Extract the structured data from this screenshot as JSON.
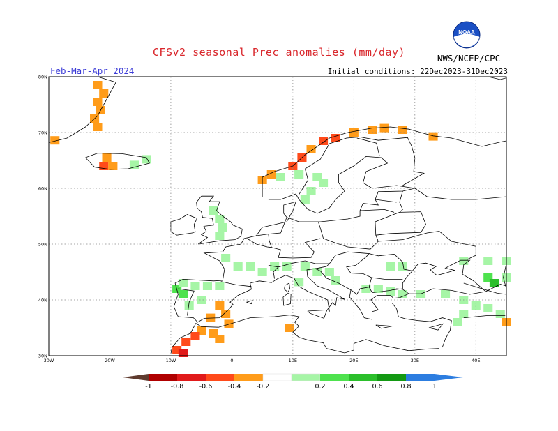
{
  "title": "CFSv2 seasonal Prec anomalies (mm/day)",
  "period": "Feb-Mar-Apr 2024",
  "initial_conditions": "Initial conditions: 22Dec2023-31Dec2023",
  "agency": "NWS/NCEP/CPC",
  "logo_text": "NOAA",
  "map": {
    "projection": "equirectangular",
    "lon_range": [
      -30,
      45
    ],
    "lat_range": [
      30,
      80
    ],
    "grid": true,
    "lat_ticks": [
      "30N",
      "40N",
      "50N",
      "60N",
      "70N",
      "80N"
    ],
    "lon_ticks": [
      "30W",
      "20W",
      "10W",
      "0",
      "10E",
      "20E",
      "30E",
      "40E"
    ]
  },
  "legend": {
    "labels": [
      "-1",
      "-0.8",
      "-0.6",
      "-0.4",
      "-0.2",
      "0.2",
      "0.4",
      "0.6",
      "0.8",
      "1"
    ],
    "colors": [
      "#5e3a2e",
      "#b00000",
      "#e11a1a",
      "#ff4a1a",
      "#ff9c1a",
      "#ffffff",
      "#a6f5a6",
      "#4ee24e",
      "#2bbf2b",
      "#139913",
      "#2c7de0"
    ]
  },
  "chart_data": {
    "type": "heatmap",
    "title": "CFSv2 seasonal Prec anomalies (mm/day)",
    "cells": [
      {
        "lon": -22,
        "lat": 78.5,
        "v": -0.3
      },
      {
        "lon": -21,
        "lat": 77,
        "v": -0.3
      },
      {
        "lon": -22,
        "lat": 75.5,
        "v": -0.3
      },
      {
        "lon": -21.5,
        "lat": 74,
        "v": -0.3
      },
      {
        "lon": -22.5,
        "lat": 72.5,
        "v": -0.3
      },
      {
        "lon": -22,
        "lat": 71,
        "v": -0.3
      },
      {
        "lon": -29,
        "lat": 68.6,
        "v": -0.3
      },
      {
        "lon": -20.5,
        "lat": 65.5,
        "v": -0.3
      },
      {
        "lon": -21,
        "lat": 64,
        "v": -0.5
      },
      {
        "lon": -19.5,
        "lat": 64,
        "v": -0.3
      },
      {
        "lon": -16,
        "lat": 64.2,
        "v": 0.3
      },
      {
        "lon": -14,
        "lat": 65.2,
        "v": 0.3
      },
      {
        "lon": 8,
        "lat": 62,
        "v": 0.3
      },
      {
        "lon": 11,
        "lat": 62.5,
        "v": 0.3
      },
      {
        "lon": 14,
        "lat": 62,
        "v": 0.3
      },
      {
        "lon": 15,
        "lat": 61,
        "v": 0.3
      },
      {
        "lon": 13,
        "lat": 59.5,
        "v": 0.3
      },
      {
        "lon": 12,
        "lat": 58,
        "v": 0.3
      },
      {
        "lon": 5,
        "lat": 61.5,
        "v": -0.3
      },
      {
        "lon": 6.5,
        "lat": 62.5,
        "v": -0.3
      },
      {
        "lon": 10,
        "lat": 64,
        "v": -0.5
      },
      {
        "lon": 11.5,
        "lat": 65.5,
        "v": -0.5
      },
      {
        "lon": 13,
        "lat": 67,
        "v": -0.3
      },
      {
        "lon": 15,
        "lat": 68.5,
        "v": -0.5
      },
      {
        "lon": 17,
        "lat": 69,
        "v": -0.5
      },
      {
        "lon": 20,
        "lat": 70,
        "v": -0.3
      },
      {
        "lon": 23,
        "lat": 70.5,
        "v": -0.3
      },
      {
        "lon": 25,
        "lat": 70.8,
        "v": -0.3
      },
      {
        "lon": 28,
        "lat": 70.5,
        "v": -0.3
      },
      {
        "lon": 33,
        "lat": 69.3,
        "v": -0.3
      },
      {
        "lon": -3,
        "lat": 56,
        "v": 0.3
      },
      {
        "lon": -2,
        "lat": 54.5,
        "v": 0.3
      },
      {
        "lon": -1.5,
        "lat": 53,
        "v": 0.3
      },
      {
        "lon": -2,
        "lat": 51.5,
        "v": 0.3
      },
      {
        "lon": -1,
        "lat": 47.5,
        "v": 0.3
      },
      {
        "lon": 1,
        "lat": 46,
        "v": 0.3
      },
      {
        "lon": 3,
        "lat": 46,
        "v": 0.3
      },
      {
        "lon": 5,
        "lat": 45,
        "v": 0.3
      },
      {
        "lon": 7,
        "lat": 46,
        "v": 0.3
      },
      {
        "lon": 9,
        "lat": 46,
        "v": 0.3
      },
      {
        "lon": 12,
        "lat": 46,
        "v": 0.3
      },
      {
        "lon": 14,
        "lat": 45,
        "v": 0.3
      },
      {
        "lon": 16,
        "lat": 45,
        "v": 0.3
      },
      {
        "lon": 17,
        "lat": 43.5,
        "v": 0.3
      },
      {
        "lon": 11,
        "lat": 43.2,
        "v": 0.3
      },
      {
        "lon": -9,
        "lat": 42,
        "v": 0.5
      },
      {
        "lon": -8,
        "lat": 41,
        "v": 0.5
      },
      {
        "lon": -8,
        "lat": 43,
        "v": 0.3
      },
      {
        "lon": -6,
        "lat": 42.5,
        "v": 0.3
      },
      {
        "lon": -4,
        "lat": 42.5,
        "v": 0.3
      },
      {
        "lon": -2,
        "lat": 42.5,
        "v": 0.3
      },
      {
        "lon": -5,
        "lat": 40,
        "v": 0.3
      },
      {
        "lon": -7,
        "lat": 39,
        "v": 0.3
      },
      {
        "lon": -2,
        "lat": 39,
        "v": -0.3
      },
      {
        "lon": -1,
        "lat": 37.5,
        "v": -0.3
      },
      {
        "lon": -3.5,
        "lat": 36.8,
        "v": -0.3
      },
      {
        "lon": -0.5,
        "lat": 35.7,
        "v": -0.3
      },
      {
        "lon": 9.5,
        "lat": 35,
        "v": -0.3
      },
      {
        "lon": -5,
        "lat": 34.5,
        "v": -0.3
      },
      {
        "lon": -6,
        "lat": 33.5,
        "v": -0.5
      },
      {
        "lon": -3,
        "lat": 34,
        "v": -0.3
      },
      {
        "lon": -2,
        "lat": 33,
        "v": -0.3
      },
      {
        "lon": -7.5,
        "lat": 32.5,
        "v": -0.5
      },
      {
        "lon": -9,
        "lat": 31,
        "v": -0.5
      },
      {
        "lon": -8,
        "lat": 30.5,
        "v": -0.7
      },
      {
        "lon": 22,
        "lat": 42,
        "v": 0.3
      },
      {
        "lon": 24,
        "lat": 42,
        "v": 0.3
      },
      {
        "lon": 26,
        "lat": 41.5,
        "v": 0.3
      },
      {
        "lon": 28,
        "lat": 41,
        "v": 0.3
      },
      {
        "lon": 31,
        "lat": 41,
        "v": 0.3
      },
      {
        "lon": 35,
        "lat": 41,
        "v": 0.3
      },
      {
        "lon": 38,
        "lat": 40,
        "v": 0.3
      },
      {
        "lon": 40,
        "lat": 39,
        "v": 0.3
      },
      {
        "lon": 42,
        "lat": 38.5,
        "v": 0.3
      },
      {
        "lon": 44,
        "lat": 37.5,
        "v": 0.3
      },
      {
        "lon": 38,
        "lat": 37.5,
        "v": 0.3
      },
      {
        "lon": 37,
        "lat": 36,
        "v": 0.3
      },
      {
        "lon": 26,
        "lat": 46,
        "v": 0.3
      },
      {
        "lon": 28,
        "lat": 46,
        "v": 0.3
      },
      {
        "lon": 38,
        "lat": 47,
        "v": 0.3
      },
      {
        "lon": 42,
        "lat": 47,
        "v": 0.3
      },
      {
        "lon": 45,
        "lat": 47,
        "v": 0.3
      },
      {
        "lon": 42,
        "lat": 44,
        "v": 0.4
      },
      {
        "lon": 43,
        "lat": 43,
        "v": 0.6
      },
      {
        "lon": 45,
        "lat": 44,
        "v": 0.3
      },
      {
        "lon": 45,
        "lat": 36,
        "v": -0.3
      }
    ]
  }
}
